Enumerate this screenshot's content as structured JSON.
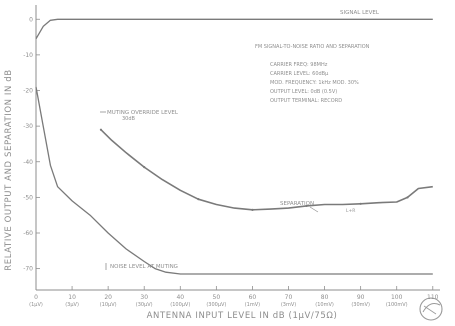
{
  "chart_data": {
    "type": "line",
    "ylabel": "RELATIVE OUTPUT AND SEPARATION IN dB",
    "xlabel": "ANTENNA INPUT LEVEL IN dB (1μV/75Ω)",
    "x_ticks": [
      {
        "value": 0,
        "label": "0",
        "sub": "(1μV)"
      },
      {
        "value": 10,
        "label": "10",
        "sub": "(3μV)"
      },
      {
        "value": 20,
        "label": "20",
        "sub": "(10μV)"
      },
      {
        "value": 30,
        "label": "30",
        "sub": "(30μV)"
      },
      {
        "value": 40,
        "label": "40",
        "sub": "(100μV)"
      },
      {
        "value": 50,
        "label": "50",
        "sub": "(300μV)"
      },
      {
        "value": 60,
        "label": "60",
        "sub": "(1mV)"
      },
      {
        "value": 70,
        "label": "70",
        "sub": "(3mV)"
      },
      {
        "value": 80,
        "label": "80",
        "sub": "(10mV)"
      },
      {
        "value": 90,
        "label": "90",
        "sub": "(30mV)"
      },
      {
        "value": 100,
        "label": "100",
        "sub": "(100mV)"
      },
      {
        "value": 110,
        "label": "110",
        "sub": ""
      }
    ],
    "y_ticks": [
      {
        "value": 0,
        "label": "0"
      },
      {
        "value": -10,
        "label": "-10"
      },
      {
        "value": -20,
        "label": "-20"
      },
      {
        "value": -30,
        "label": "-30"
      },
      {
        "value": -40,
        "label": "-40"
      },
      {
        "value": -50,
        "label": "-50"
      },
      {
        "value": -60,
        "label": "-60"
      },
      {
        "value": -70,
        "label": "-70"
      }
    ],
    "xlim": [
      0,
      112
    ],
    "ylim": [
      -76,
      4
    ],
    "series": [
      {
        "name": "SIGNAL LEVEL",
        "points": [
          [
            0,
            -5.5
          ],
          [
            2,
            -2
          ],
          [
            4,
            -0.3
          ],
          [
            6,
            0
          ],
          [
            10,
            0
          ],
          [
            20,
            0
          ],
          [
            40,
            0
          ],
          [
            60,
            0
          ],
          [
            80,
            0
          ],
          [
            100,
            0
          ],
          [
            110,
            0
          ]
        ]
      },
      {
        "name": "SEPARATION",
        "points": [
          [
            18,
            -31
          ],
          [
            21,
            -34
          ],
          [
            25,
            -37.5
          ],
          [
            30,
            -41.5
          ],
          [
            35,
            -45
          ],
          [
            40,
            -48
          ],
          [
            45,
            -50.5
          ],
          [
            50,
            -52
          ],
          [
            55,
            -53
          ],
          [
            60,
            -53.5
          ],
          [
            65,
            -53.3
          ],
          [
            70,
            -53
          ],
          [
            75,
            -52.4
          ],
          [
            80,
            -52
          ],
          [
            85,
            -52
          ],
          [
            90,
            -51.8
          ],
          [
            95,
            -51.5
          ],
          [
            100,
            -51.3
          ],
          [
            103,
            -50
          ],
          [
            106,
            -47.5
          ],
          [
            110,
            -47
          ]
        ]
      },
      {
        "name": "NOISE LEVEL AT MUTING",
        "points": [
          [
            0,
            -19
          ],
          [
            2,
            -30
          ],
          [
            4,
            -41
          ],
          [
            6,
            -47
          ],
          [
            10,
            -51
          ],
          [
            15,
            -55
          ],
          [
            20,
            -60
          ],
          [
            25,
            -64.5
          ],
          [
            30,
            -68
          ],
          [
            33,
            -70
          ],
          [
            36,
            -71
          ],
          [
            40,
            -71.5
          ],
          [
            50,
            -71.5
          ],
          [
            70,
            -71.5
          ],
          [
            90,
            -71.5
          ],
          [
            110,
            -71.5
          ]
        ]
      }
    ],
    "annotations": {
      "signal_level": "SIGNAL LEVEL",
      "separation": "SEPARATION",
      "noise_muting": "NOISE LEVEL AT MUTING",
      "muting_level": "MUTING OVERRIDE LEVEL",
      "muting_level_sub": "30dB",
      "notes_title": "FM SIGNAL-TO-NOISE RATIO AND SEPARATION",
      "notes": [
        "CARRIER FREQ: 98MHz",
        "CARRIER LEVEL: 60dBμ",
        "MOD. FREQUENCY: 1kHz  MOD. 30%",
        "OUTPUT LEVEL: 0dB (0.5V)",
        "OUTPUT TERMINAL: RECORD"
      ],
      "small_label": "L+R"
    },
    "grid": false,
    "legend": "none"
  }
}
